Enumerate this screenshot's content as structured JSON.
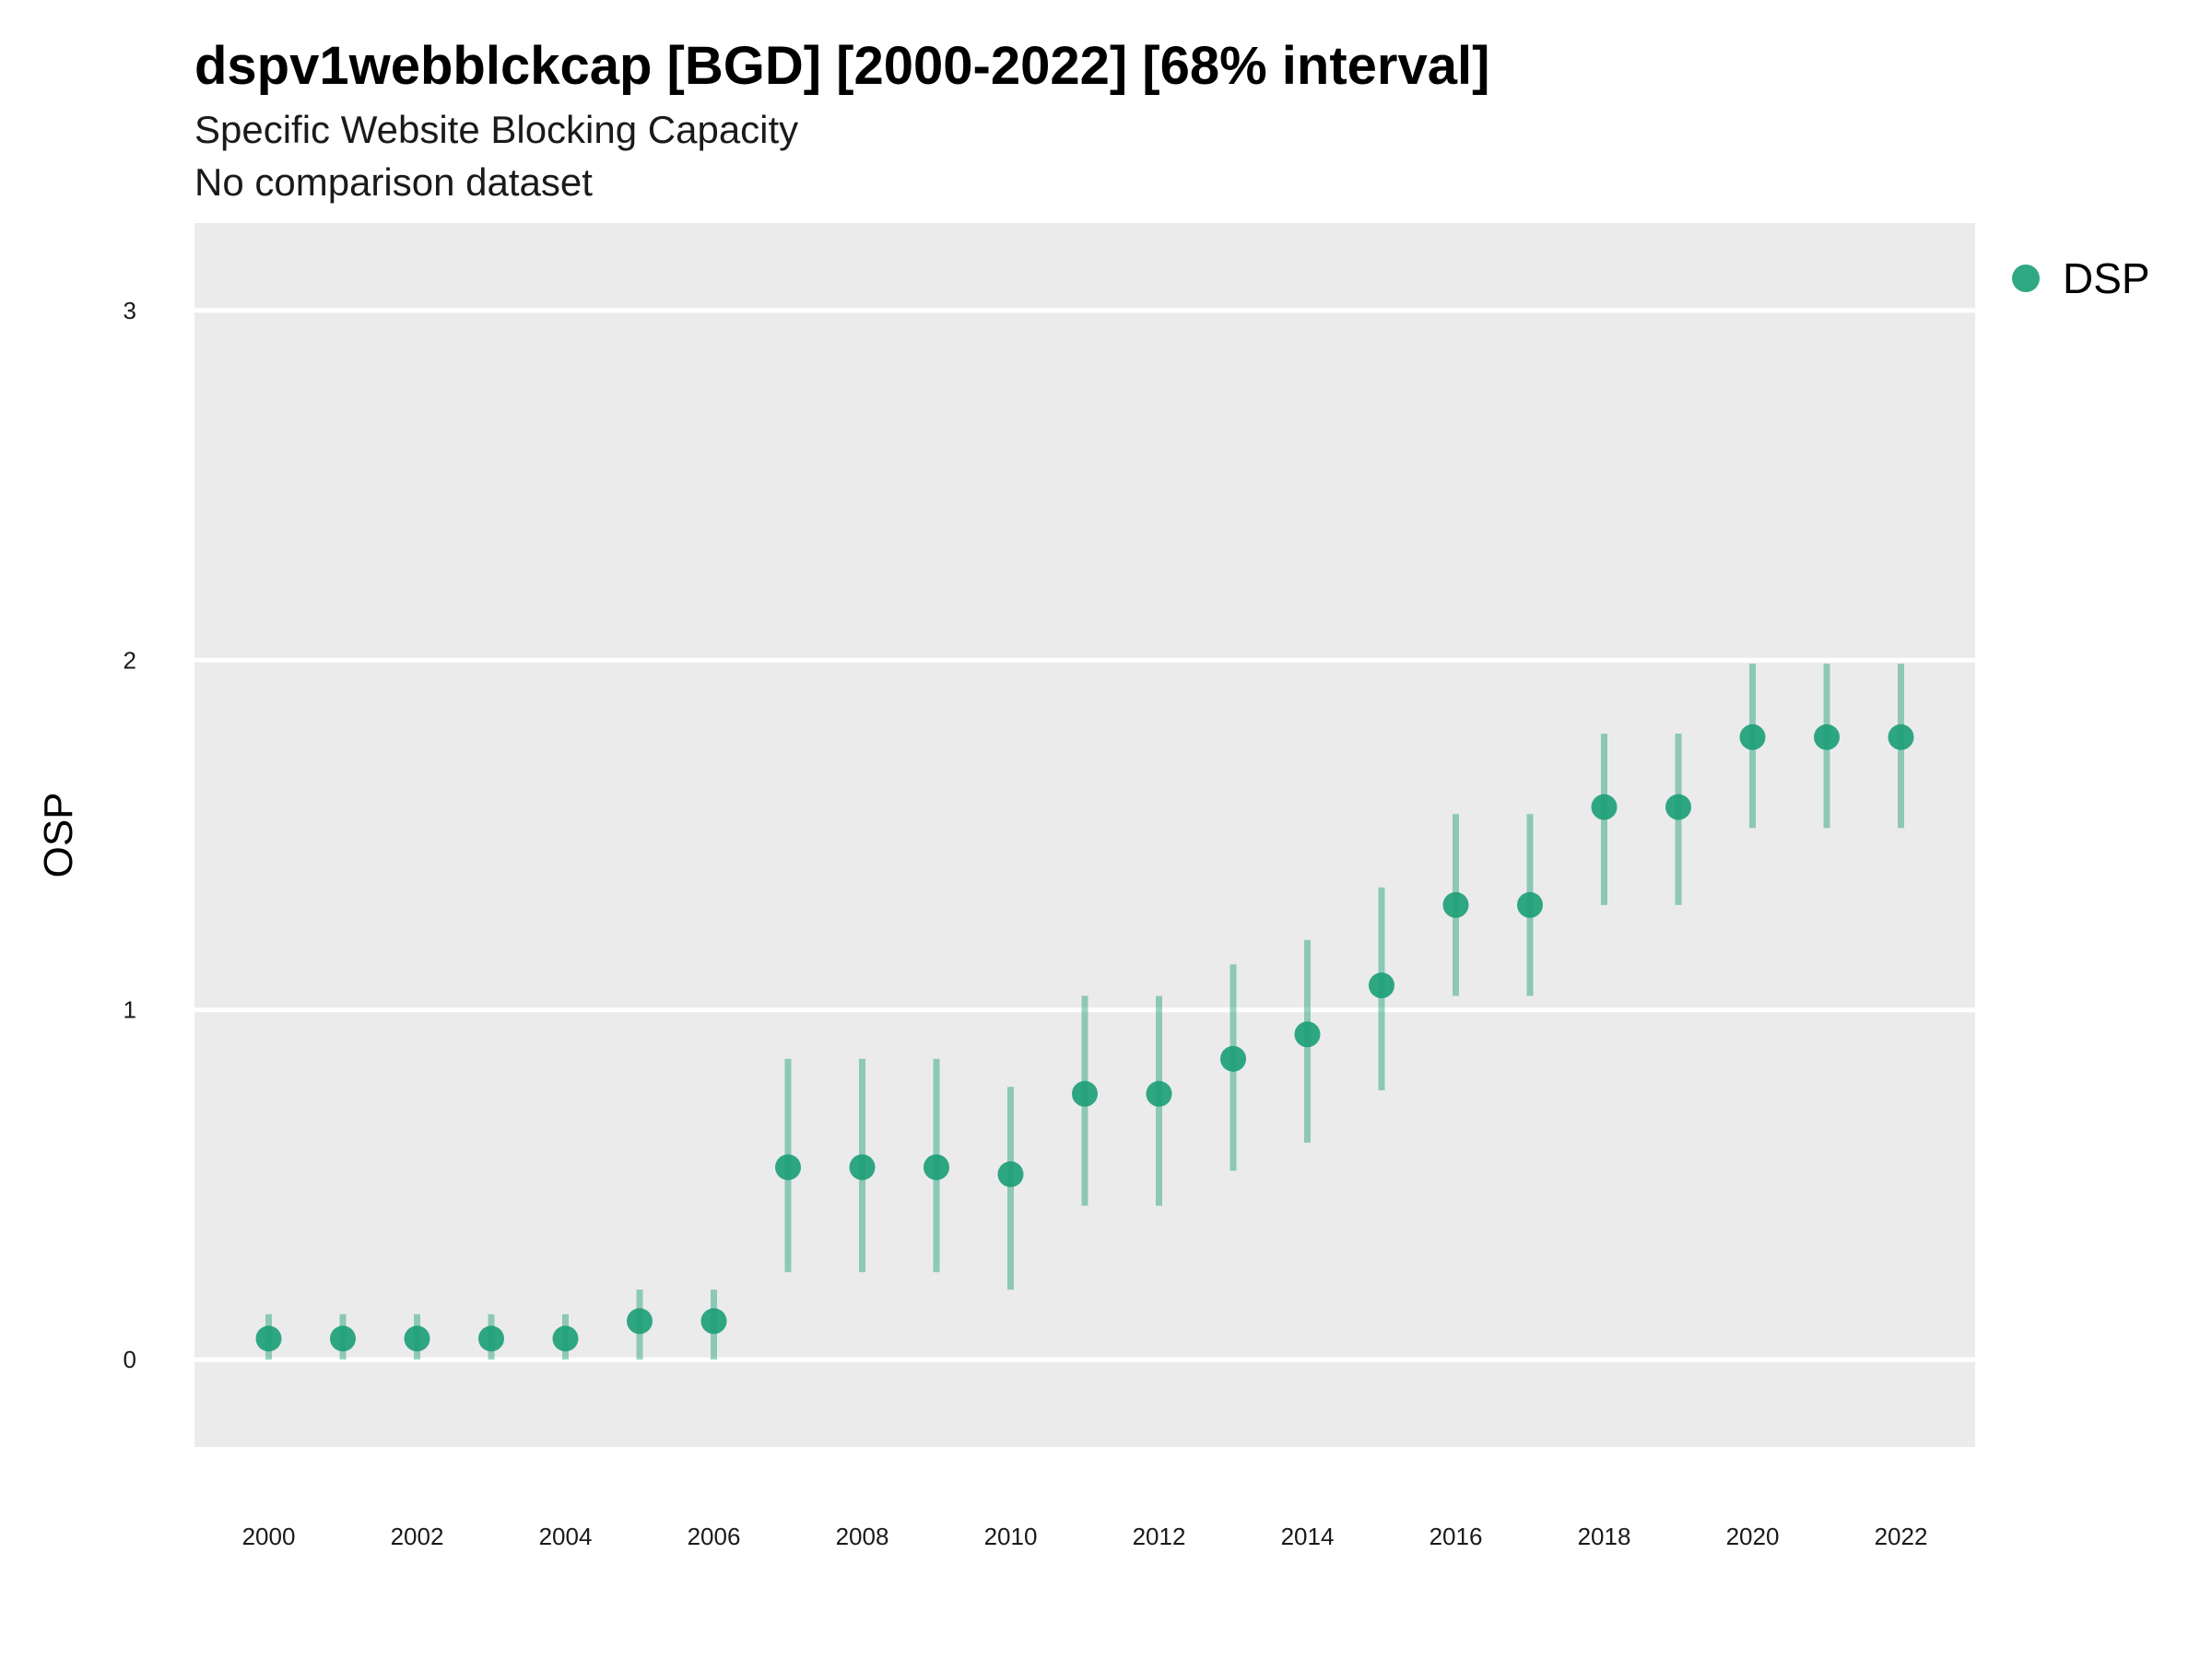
{
  "chart_data": {
    "type": "scatter",
    "title": "dspv1webblckcap [BGD] [2000-2022] [68% interval]",
    "subtitle": "Specific Website Blocking Capacity",
    "caption": "No comparison dataset",
    "xlabel": "",
    "ylabel": "OSP",
    "xlim": [
      1999,
      2023
    ],
    "ylim": [
      -0.25,
      3.25
    ],
    "x_ticks": [
      2000,
      2002,
      2004,
      2006,
      2008,
      2010,
      2012,
      2014,
      2016,
      2018,
      2020,
      2022
    ],
    "y_ticks": [
      0,
      1,
      2,
      3
    ],
    "grid": true,
    "legend_position": "right",
    "series": [
      {
        "name": "DSP",
        "color": "#1b9e77",
        "points": [
          {
            "x": 2000,
            "y": 0.06,
            "low": 0.0,
            "high": 0.13
          },
          {
            "x": 2001,
            "y": 0.06,
            "low": 0.0,
            "high": 0.13
          },
          {
            "x": 2002,
            "y": 0.06,
            "low": 0.0,
            "high": 0.13
          },
          {
            "x": 2003,
            "y": 0.06,
            "low": 0.0,
            "high": 0.13
          },
          {
            "x": 2004,
            "y": 0.06,
            "low": 0.0,
            "high": 0.13
          },
          {
            "x": 2005,
            "y": 0.11,
            "low": 0.0,
            "high": 0.2
          },
          {
            "x": 2006,
            "y": 0.11,
            "low": 0.0,
            "high": 0.2
          },
          {
            "x": 2007,
            "y": 0.55,
            "low": 0.25,
            "high": 0.86
          },
          {
            "x": 2008,
            "y": 0.55,
            "low": 0.25,
            "high": 0.86
          },
          {
            "x": 2009,
            "y": 0.55,
            "low": 0.25,
            "high": 0.86
          },
          {
            "x": 2010,
            "y": 0.53,
            "low": 0.2,
            "high": 0.78
          },
          {
            "x": 2011,
            "y": 0.76,
            "low": 0.44,
            "high": 1.04
          },
          {
            "x": 2012,
            "y": 0.76,
            "low": 0.44,
            "high": 1.04
          },
          {
            "x": 2013,
            "y": 0.86,
            "low": 0.54,
            "high": 1.13
          },
          {
            "x": 2014,
            "y": 0.93,
            "low": 0.62,
            "high": 1.2
          },
          {
            "x": 2015,
            "y": 1.07,
            "low": 0.77,
            "high": 1.35
          },
          {
            "x": 2016,
            "y": 1.3,
            "low": 1.04,
            "high": 1.56
          },
          {
            "x": 2017,
            "y": 1.3,
            "low": 1.04,
            "high": 1.56
          },
          {
            "x": 2018,
            "y": 1.58,
            "low": 1.3,
            "high": 1.79
          },
          {
            "x": 2019,
            "y": 1.58,
            "low": 1.3,
            "high": 1.79
          },
          {
            "x": 2020,
            "y": 1.78,
            "low": 1.52,
            "high": 1.99
          },
          {
            "x": 2021,
            "y": 1.78,
            "low": 1.52,
            "high": 1.99
          },
          {
            "x": 2022,
            "y": 1.78,
            "low": 1.52,
            "high": 1.99
          }
        ]
      }
    ]
  }
}
